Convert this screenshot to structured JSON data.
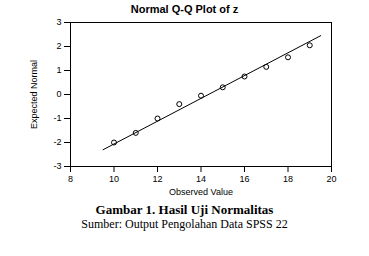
{
  "chart_data": {
    "type": "scatter",
    "title": "Normal Q-Q Plot of z",
    "x_label": "Observed Value",
    "y_label": "Expected Normal",
    "xlim": [
      8,
      20
    ],
    "xticks": [
      8,
      10,
      12,
      14,
      16,
      18,
      20
    ],
    "ylim": [
      -3,
      3
    ],
    "yticks": [
      -3,
      -2,
      -1,
      0,
      1,
      2,
      3
    ],
    "grid": false,
    "series": [
      {
        "type": "scatter",
        "marker": "circle",
        "color": "#000000",
        "x": [
          10,
          11,
          12,
          13,
          14,
          15,
          16,
          17,
          18,
          19
        ],
        "values": [
          -2.0,
          -1.6,
          -1.0,
          -0.4,
          -0.05,
          0.3,
          0.75,
          1.15,
          1.55,
          2.05
        ]
      },
      {
        "type": "line",
        "line_style": "solid",
        "color": "#000000",
        "x": [
          9.5,
          19.5
        ],
        "values": [
          -2.3,
          2.45
        ]
      }
    ],
    "caption": "Gambar 1. Hasil Uji Normalitas",
    "source": "Sumber: Output Pengolahan Data SPSS 22"
  }
}
